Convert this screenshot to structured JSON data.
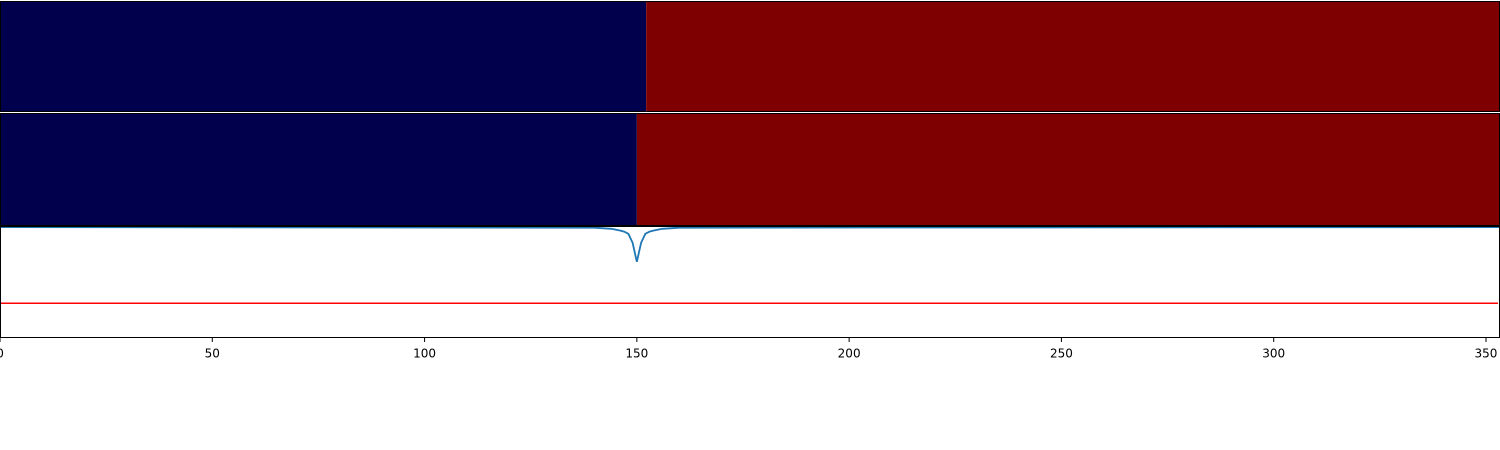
{
  "chart_data": [
    {
      "type": "segments",
      "xlim": [
        0,
        353.3
      ],
      "segments": [
        {
          "x0": 0,
          "x1": 152.2,
          "color": "#00004c"
        },
        {
          "x0": 152.2,
          "x1": 353.3,
          "color": "#7f0000"
        }
      ]
    },
    {
      "type": "segments",
      "xlim": [
        0,
        353.3
      ],
      "segments": [
        {
          "x0": 0,
          "x1": 150,
          "color": "#00004c"
        },
        {
          "x0": 150,
          "x1": 353.3,
          "color": "#7f0000"
        }
      ]
    },
    {
      "type": "line",
      "xlim": [
        0,
        353.3
      ],
      "ylim": [
        0,
        1
      ],
      "xticks": [
        0,
        50,
        100,
        150,
        200,
        250,
        300,
        350
      ],
      "series": [
        {
          "color": "#1f77b4",
          "x": [
            0,
            140,
            144,
            146,
            147,
            148,
            149,
            150,
            151,
            152,
            153,
            154,
            156,
            160,
            353.3
          ],
          "values": [
            0.99,
            0.985,
            0.975,
            0.96,
            0.95,
            0.93,
            0.85,
            0.68,
            0.85,
            0.93,
            0.95,
            0.96,
            0.975,
            0.985,
            0.99
          ]
        }
      ],
      "hlines": [
        {
          "value": 0.31,
          "color": "#ff0000"
        }
      ]
    }
  ]
}
